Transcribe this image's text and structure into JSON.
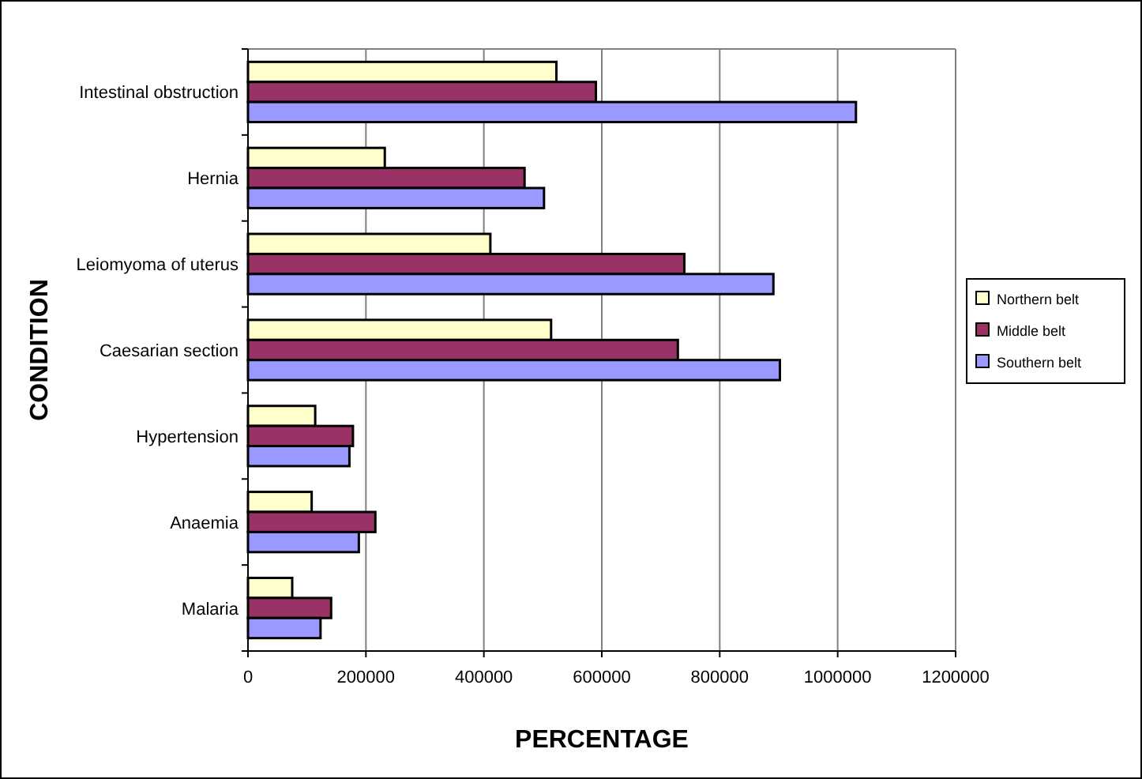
{
  "chart_data": {
    "type": "bar",
    "orientation": "horizontal",
    "xlabel": "PERCENTAGE",
    "ylabel": "CONDITION",
    "categories": [
      "Intestinal obstruction",
      "Hernia",
      "Leiomyoma of uterus",
      "Caesarian section",
      "Hypertension",
      "Anaemia",
      "Malaria"
    ],
    "series": [
      {
        "name": "Northern belt",
        "color": "#ffffcc",
        "values": [
          523000,
          232000,
          411000,
          514000,
          114000,
          108000,
          75000
        ]
      },
      {
        "name": "Middle belt",
        "color": "#993366",
        "values": [
          590000,
          469000,
          740000,
          729000,
          178000,
          216000,
          141000
        ]
      },
      {
        "name": "Southern belt",
        "color": "#9999ff",
        "values": [
          1031000,
          502000,
          891000,
          902000,
          172000,
          188000,
          123000
        ]
      }
    ],
    "xlim": [
      0,
      1200000
    ],
    "xticks": [
      0,
      200000,
      400000,
      600000,
      800000,
      1000000,
      1200000
    ],
    "grid": "x",
    "legend": "right"
  }
}
